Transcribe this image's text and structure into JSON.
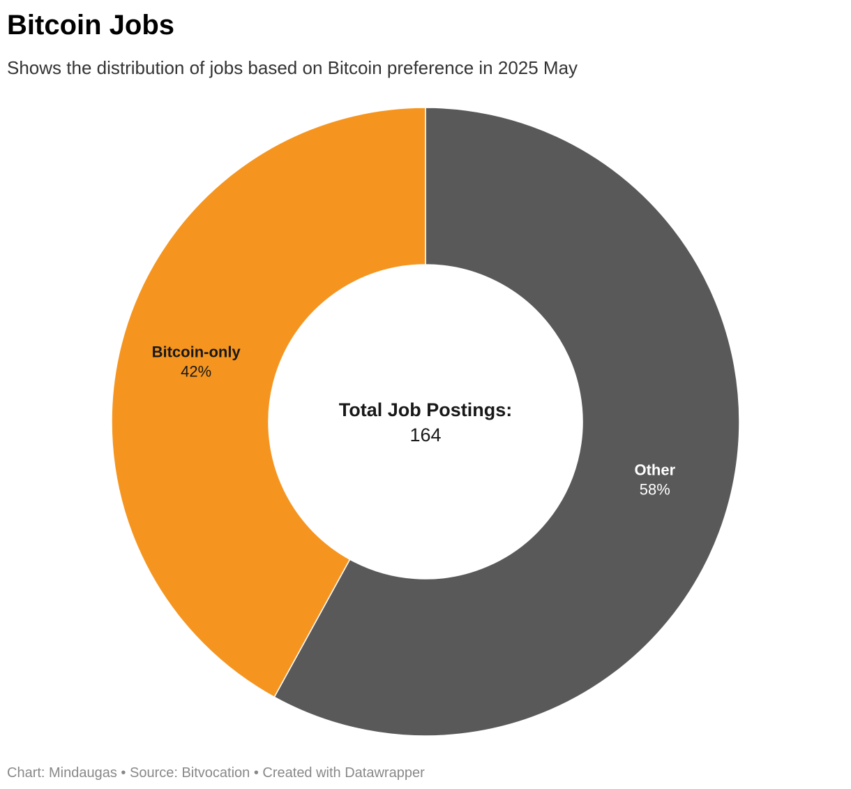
{
  "header": {
    "title": "Bitcoin Jobs",
    "subtitle": "Shows the distribution of jobs based on Bitcoin preference in 2025 May"
  },
  "center": {
    "title": "Total Job Postings:",
    "value": "164"
  },
  "footer": {
    "text": "Chart: Mindaugas • Source: Bitvocation • Created with Datawrapper"
  },
  "chart_data": {
    "type": "pie",
    "variant": "donut",
    "title": "Bitcoin Jobs",
    "subtitle": "Shows the distribution of jobs based on Bitcoin preference in 2025 May",
    "total": 164,
    "slices": [
      {
        "label": "Other",
        "percent_label": "58%",
        "value": 58,
        "color": "#595959",
        "label_color": "#ffffff"
      },
      {
        "label": "Bitcoin-only",
        "percent_label": "42%",
        "value": 42,
        "color": "#f5951f",
        "label_color": "#181818"
      }
    ],
    "start": "12 o'clock",
    "direction": "clockwise",
    "legend": "none (direct labels on slices)"
  }
}
